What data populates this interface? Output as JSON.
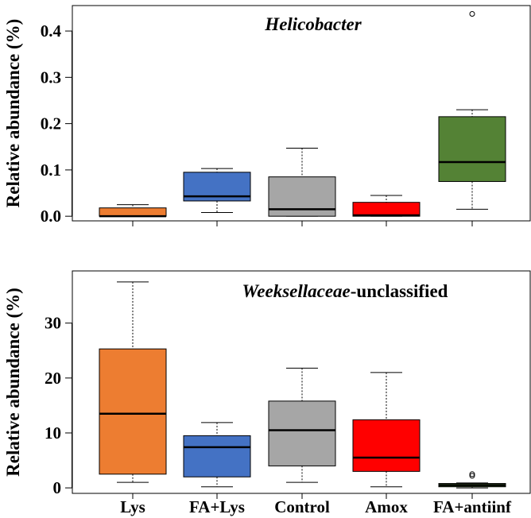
{
  "chart_data": [
    {
      "type": "box",
      "title_italic": "Helicobacter",
      "title_rest": "",
      "ylabel": "Relative abundance (%)",
      "ylim": [
        -0.01,
        0.455
      ],
      "yticks": [
        0.0,
        0.1,
        0.2,
        0.3,
        0.4
      ],
      "yticklabels": [
        "0.0",
        "0.1",
        "0.2",
        "0.3",
        "0.4"
      ],
      "categories": [
        "Lys",
        "FA+Lys",
        "Control",
        "Amox",
        "FA+antiinf"
      ],
      "colors": [
        "#ED7D31",
        "#4472C4",
        "#A6A6A6",
        "#FF0000",
        "#548235"
      ],
      "boxes": [
        {
          "whisker_low": 0.0,
          "q1": 0.0,
          "median": 0.0,
          "q3": 0.018,
          "whisker_high": 0.025,
          "outliers": []
        },
        {
          "whisker_low": 0.008,
          "q1": 0.033,
          "median": 0.043,
          "q3": 0.095,
          "whisker_high": 0.103,
          "outliers": []
        },
        {
          "whisker_low": 0.0,
          "q1": 0.0,
          "median": 0.015,
          "q3": 0.085,
          "whisker_high": 0.147,
          "outliers": []
        },
        {
          "whisker_low": 0.0,
          "q1": 0.0,
          "median": 0.002,
          "q3": 0.03,
          "whisker_high": 0.045,
          "outliers": []
        },
        {
          "whisker_low": 0.015,
          "q1": 0.075,
          "median": 0.117,
          "q3": 0.215,
          "whisker_high": 0.23,
          "outliers": [
            0.437
          ]
        }
      ]
    },
    {
      "type": "box",
      "title_italic": "Weeksellaceae",
      "title_rest": "-unclassified",
      "ylabel": "Relative abundance (%)",
      "ylim": [
        -1.0,
        39.5
      ],
      "yticks": [
        0,
        10,
        20,
        30
      ],
      "yticklabels": [
        "0",
        "10",
        "20",
        "30"
      ],
      "categories": [
        "Lys",
        "FA+Lys",
        "Control",
        "Amox",
        "FA+antiinf"
      ],
      "colors": [
        "#ED7D31",
        "#4472C4",
        "#A6A6A6",
        "#FF0000",
        "#548235"
      ],
      "boxes": [
        {
          "whisker_low": 1.0,
          "q1": 2.5,
          "median": 13.5,
          "q3": 25.3,
          "whisker_high": 37.5,
          "outliers": []
        },
        {
          "whisker_low": 0.2,
          "q1": 2.0,
          "median": 7.4,
          "q3": 9.5,
          "whisker_high": 11.9,
          "outliers": []
        },
        {
          "whisker_low": 1.0,
          "q1": 4.0,
          "median": 10.5,
          "q3": 15.8,
          "whisker_high": 21.8,
          "outliers": []
        },
        {
          "whisker_low": 0.2,
          "q1": 3.0,
          "median": 5.5,
          "q3": 12.4,
          "whisker_high": 21.0,
          "outliers": []
        },
        {
          "whisker_low": 0.0,
          "q1": 0.2,
          "median": 0.5,
          "q3": 0.8,
          "whisker_high": 0.9,
          "outliers": [
            2.2,
            2.5
          ]
        }
      ]
    }
  ],
  "xticklabels": [
    "Lys",
    "FA+Lys",
    "Control",
    "Amox",
    "FA+antiinf"
  ]
}
